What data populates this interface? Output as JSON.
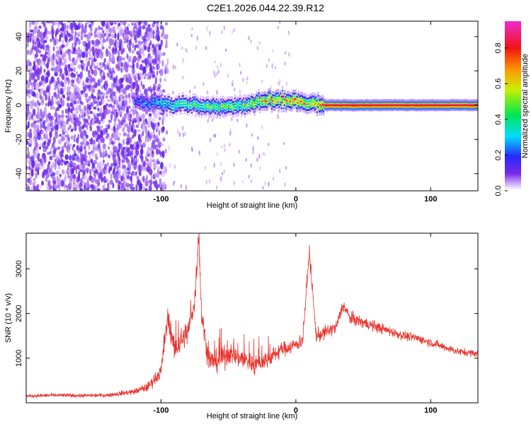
{
  "title": "C2E1.2026.044.22.39.R12",
  "colors": {
    "snr_line": "#e8332d",
    "frame": "#000000"
  },
  "chart_data": [
    {
      "type": "heatmap",
      "xlabel": "Height of straight line (km)",
      "ylabel": "Frequency (Hz)",
      "xlim": [
        -200,
        135
      ],
      "ylim": [
        -50,
        49
      ],
      "x_ticks": [
        -100,
        0,
        100
      ],
      "x_tick_labels": [
        "-100",
        "0",
        "100"
      ],
      "y_ticks": [
        -40,
        -20,
        0,
        20,
        40
      ],
      "y_tick_labels": [
        "-40",
        "-20",
        "0",
        "20",
        "40"
      ],
      "colorbar": {
        "label": "Normalized spectral amplitude",
        "range": [
          0,
          0.95
        ],
        "ticks": [
          0.0,
          0.2,
          0.4,
          0.6,
          0.8
        ],
        "tick_labels": [
          "0.0",
          "0.2",
          "0.4",
          "0.6",
          "0.8"
        ],
        "colormap": "rainbow"
      },
      "features": {
        "broadband_noise_region_x": [
          -200,
          -102
        ],
        "noise_fade_x": [
          -102,
          -95
        ],
        "dense_band": {
          "x": [
            -120,
            -100,
            -80,
            -60,
            -40,
            -20,
            0,
            10,
            20,
            135
          ],
          "center_hz": [
            2,
            1,
            0,
            -1,
            0,
            3,
            2,
            1,
            0,
            0
          ],
          "peak_amplitude": [
            0.25,
            0.45,
            0.55,
            0.6,
            0.6,
            0.9,
            0.95,
            0.8,
            0.9,
            0.9
          ]
        }
      }
    },
    {
      "type": "line",
      "xlabel": "Height of straight line (km)",
      "ylabel": "SNR (10 * v/v)",
      "xlim": [
        -200,
        135
      ],
      "ylim": [
        0,
        3800
      ],
      "x_ticks": [
        -100,
        0,
        100
      ],
      "x_tick_labels": [
        "-100",
        "0",
        "100"
      ],
      "y_ticks": [
        1000,
        2000,
        3000
      ],
      "y_tick_labels": [
        "1000",
        "2000",
        "3000"
      ],
      "series": [
        {
          "x": [
            -200,
            -180,
            -160,
            -140,
            -120,
            -110,
            -100,
            -95,
            -90,
            -80,
            -75,
            -72,
            -70,
            -65,
            -60,
            -50,
            -40,
            -30,
            -20,
            -10,
            0,
            5,
            10,
            15,
            20,
            30,
            35,
            40,
            50,
            60,
            70,
            80,
            90,
            100,
            110,
            120,
            135
          ],
          "y": [
            150,
            170,
            160,
            170,
            250,
            350,
            700,
            1900,
            1200,
            1600,
            2300,
            3800,
            2000,
            1000,
            900,
            1100,
            1000,
            850,
            1000,
            1200,
            1300,
            1400,
            3400,
            1500,
            1550,
            1700,
            2200,
            1900,
            1800,
            1700,
            1600,
            1500,
            1450,
            1350,
            1250,
            1150,
            1100
          ],
          "noise_amplitude": [
            70,
            80,
            70,
            80,
            120,
            180,
            300,
            500,
            500,
            500,
            500,
            500,
            500,
            450,
            450,
            450,
            450,
            400,
            350,
            300,
            300,
            300,
            300,
            280,
            280,
            260,
            280,
            260,
            240,
            220,
            200,
            180,
            180,
            170,
            160,
            150,
            150
          ]
        }
      ]
    }
  ]
}
